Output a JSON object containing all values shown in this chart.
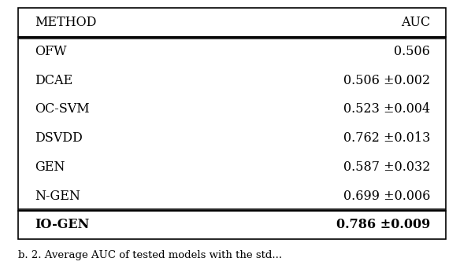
{
  "header": [
    "METHOD",
    "AUC"
  ],
  "rows": [
    [
      "OFW",
      "0.506"
    ],
    [
      "DCAE",
      "0.506 ±0.002"
    ],
    [
      "OC-SVM",
      "0.523 ±0.004"
    ],
    [
      "DSVDD",
      "0.762 ±0.013"
    ],
    [
      "GEN",
      "0.587 ±0.032"
    ],
    [
      "N-GEN",
      "0.699 ±0.006"
    ]
  ],
  "last_row": [
    "IO-GEN",
    "0.786 ±0.009"
  ],
  "caption": "b. 2. Average AUC of tested models with the std...",
  "bg_color": "#ffffff",
  "border_color": "#000000",
  "text_color": "#000000",
  "font_size": 11.5,
  "caption_font_size": 9.5,
  "lw": 1.2
}
